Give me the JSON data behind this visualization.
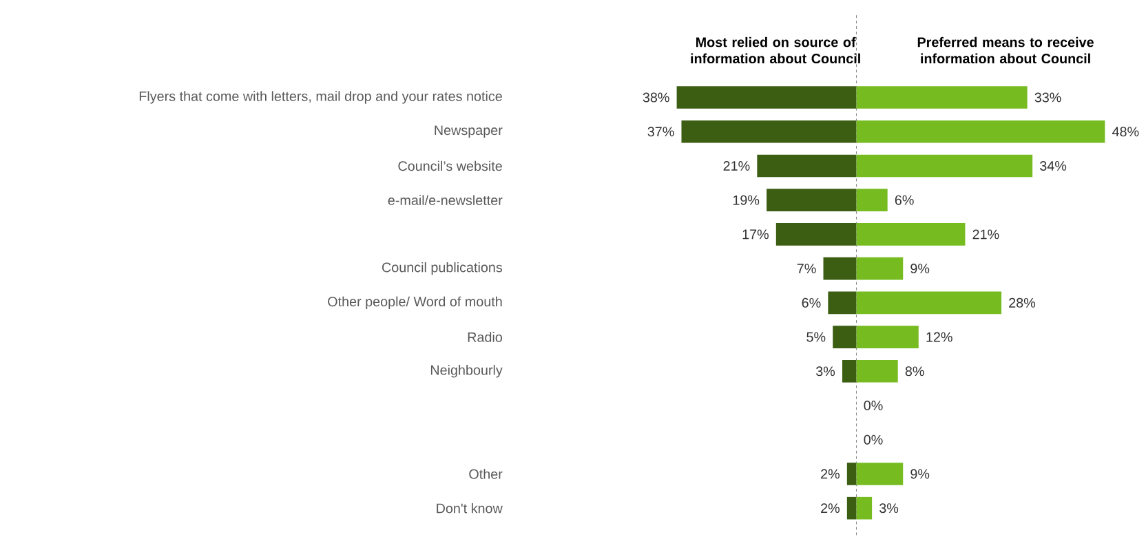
{
  "chart_data": [
    {
      "type": "bar",
      "orientation": "horizontal",
      "title": "Most relied on source of information about Council",
      "categories": [
        "Flyers that come with letters, mail drop and your rates notice",
        "Newspaper",
        "Council’s website",
        "e-mail/e-newsletter",
        null,
        "Council publications",
        "Other people/ Word of mouth",
        "Radio",
        "Neighbourly",
        null,
        null,
        "Other",
        "Don't know"
      ],
      "color": "#3b5e12",
      "values": [
        38,
        37,
        21,
        19,
        17,
        7,
        6,
        5,
        3,
        null,
        null,
        2,
        2
      ],
      "value_labels": [
        "38%",
        "37%",
        "21%",
        "19%",
        "17%",
        "7%",
        "6%",
        "5%",
        "3%",
        null,
        null,
        "2%",
        "2%"
      ],
      "xlim": [
        38,
        0
      ],
      "tick_labels": "y",
      "ref_lines": [
        {
          "axis": "x",
          "value": 0,
          "color": "#808080",
          "line_style": "dashed"
        }
      ]
    },
    {
      "type": "bar",
      "orientation": "horizontal",
      "title": "Preferred means to receive information about Council",
      "categories": [
        null,
        null,
        null,
        null,
        null,
        null,
        null,
        null,
        null,
        null,
        null,
        null,
        null
      ],
      "color": "#76bc21",
      "values": [
        33,
        48,
        34,
        6,
        21,
        9,
        28,
        12,
        8,
        0,
        0,
        9,
        3
      ],
      "value_labels": [
        "33%",
        "48%",
        "34%",
        "6%",
        "21%",
        "9%",
        "28%",
        "12%",
        "8%",
        "0%",
        "0%",
        "9%",
        "3%"
      ],
      "xlim": [
        0,
        48
      ],
      "tick_labels": false
    }
  ]
}
